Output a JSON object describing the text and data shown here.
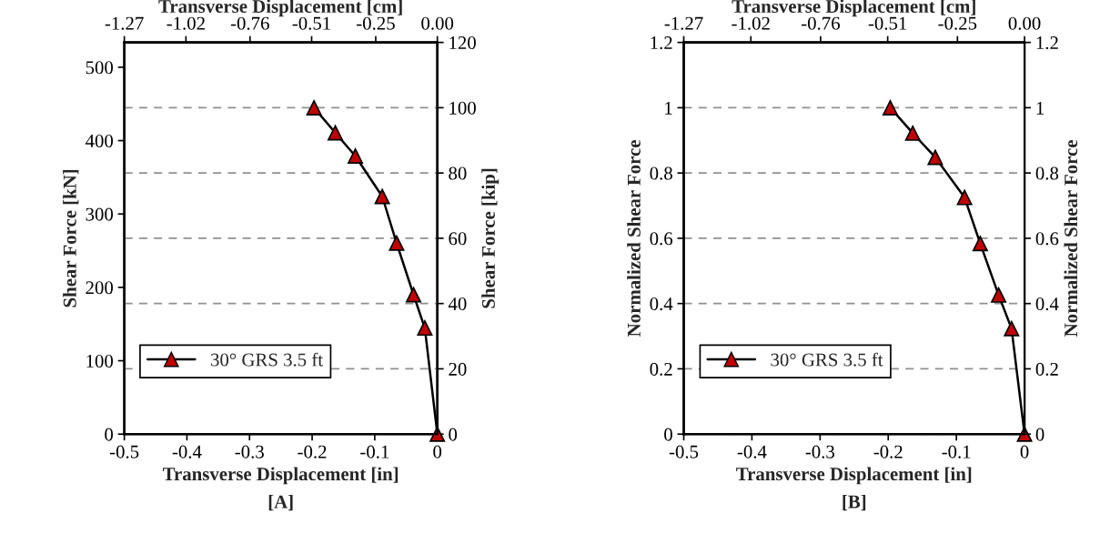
{
  "chart_data": [
    {
      "type": "line",
      "xlabel": "Transverse Displacement [in]",
      "x2label": "Transverse Displacement [cm]",
      "ylabel": "Shear Force [kN]",
      "y2label": "Shear Force [kip]",
      "annotations": [
        "[A]"
      ],
      "xlim": [
        -0.5,
        0
      ],
      "xticks": [
        -0.5,
        -0.4,
        -0.3,
        -0.2,
        -0.1,
        0
      ],
      "x2lim": [
        -1.27,
        0
      ],
      "x2ticks": [
        -1.27,
        -1.02,
        -0.76,
        -0.51,
        -0.25,
        {
          "value": 0,
          "label": "0.00"
        }
      ],
      "ylim": [
        0,
        533.8
      ],
      "yticks": [
        0,
        100,
        200,
        300,
        400,
        500
      ],
      "y2lim": [
        0,
        120
      ],
      "y2ticks": [
        0,
        20,
        40,
        60,
        80,
        100,
        120
      ],
      "grid": "y",
      "legend": "bottom left",
      "marker": "triangle",
      "line_style": "solid",
      "series": [
        {
          "name": "30° GRS 3.5 ft",
          "color": "#c00000",
          "axis": "y2",
          "x": [
            -0.197,
            -0.163,
            -0.131,
            -0.088,
            -0.065,
            -0.038,
            -0.02,
            0
          ],
          "values": [
            100,
            92.3,
            85.2,
            72.8,
            58.5,
            42.7,
            32.5,
            0
          ]
        }
      ]
    },
    {
      "type": "line",
      "xlabel": "Transverse Displacement [in]",
      "x2label": "Transverse Displacement [cm]",
      "ylabel": "Normalized Shear Force",
      "y2label": "Normalized Shear Force",
      "annotations": [
        "[B]"
      ],
      "xlim": [
        -0.5,
        0
      ],
      "xticks": [
        -0.5,
        -0.4,
        -0.3,
        -0.2,
        -0.1,
        0
      ],
      "x2lim": [
        -1.27,
        0
      ],
      "x2ticks": [
        -1.27,
        -1.02,
        -0.76,
        -0.51,
        -0.25,
        {
          "value": 0,
          "label": "0.00"
        }
      ],
      "ylim": [
        0,
        1.2
      ],
      "yticks": [
        0,
        0.2,
        0.4,
        0.6,
        0.8,
        1,
        1.2
      ],
      "y2lim": [
        0,
        1.2
      ],
      "y2ticks": [
        0,
        0.2,
        0.4,
        0.6,
        0.8,
        1,
        1.2
      ],
      "grid": "y",
      "legend": "bottom left",
      "marker": "triangle",
      "line_style": "solid",
      "series": [
        {
          "name": "30° GRS 3.5 ft",
          "color": "#c00000",
          "axis": "y",
          "x": [
            -0.197,
            -0.164,
            -0.131,
            -0.088,
            -0.065,
            -0.038,
            -0.019,
            0
          ],
          "values": [
            1.0,
            0.922,
            0.848,
            0.725,
            0.584,
            0.426,
            0.323,
            0
          ]
        }
      ]
    }
  ]
}
